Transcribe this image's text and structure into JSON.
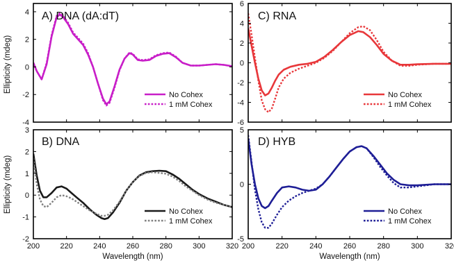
{
  "chart_data": [
    {
      "type": "line",
      "title": "A)  DNA (dA:dT)",
      "xlabel": "",
      "ylabel": "Ellipticity (mdeg)",
      "xlim": [
        200,
        320
      ],
      "ylim": [
        -4,
        4.6
      ],
      "xticks": [
        200,
        220,
        240,
        260,
        280,
        300,
        320
      ],
      "yticks": [
        -4,
        -2,
        0,
        2,
        4
      ],
      "show_xticklabels": false,
      "legend": "bottom-right",
      "series": [
        {
          "name": "No Cohex",
          "color": "#c81ec8",
          "style": "solid",
          "x": [
            200,
            202,
            205,
            208,
            211,
            214,
            216,
            218,
            221,
            224,
            227,
            230,
            233,
            236,
            239,
            242,
            244,
            246,
            249,
            252,
            255,
            258,
            260,
            263,
            266,
            270,
            274,
            278,
            282,
            286,
            290,
            295,
            300,
            305,
            310,
            315,
            320
          ],
          "y": [
            0.3,
            -0.3,
            -0.9,
            0.2,
            2.2,
            3.6,
            3.8,
            3.6,
            3.1,
            2.4,
            2.0,
            1.6,
            0.9,
            0.0,
            -1.2,
            -2.3,
            -2.7,
            -2.5,
            -1.4,
            -0.2,
            0.6,
            1.0,
            0.9,
            0.5,
            0.45,
            0.5,
            0.8,
            0.95,
            1.0,
            0.7,
            0.3,
            0.1,
            0.1,
            0.15,
            0.2,
            0.15,
            0.05
          ]
        },
        {
          "name": "1 mM Cohex",
          "color": "#c81ec8",
          "style": "dotted",
          "x": [
            200,
            202,
            205,
            208,
            211,
            214,
            216,
            218,
            221,
            224,
            227,
            230,
            233,
            236,
            239,
            242,
            244,
            246,
            249,
            252,
            255,
            258,
            260,
            263,
            266,
            270,
            274,
            278,
            282,
            286,
            290,
            295,
            300,
            305,
            310,
            315,
            320
          ],
          "y": [
            0.3,
            -0.3,
            -0.9,
            0.3,
            2.3,
            3.7,
            3.9,
            3.7,
            3.2,
            2.5,
            2.1,
            1.7,
            1.0,
            0.0,
            -1.2,
            -2.4,
            -2.8,
            -2.6,
            -1.5,
            -0.25,
            0.6,
            1.05,
            0.95,
            0.55,
            0.5,
            0.55,
            0.85,
            1.0,
            1.05,
            0.75,
            0.3,
            0.1,
            0.1,
            0.15,
            0.2,
            0.15,
            0.05
          ]
        }
      ]
    },
    {
      "type": "line",
      "title": "C)  RNA",
      "xlabel": "",
      "ylabel": "",
      "xlim": [
        200,
        320
      ],
      "ylim": [
        -6,
        6
      ],
      "xticks": [
        200,
        220,
        240,
        260,
        280,
        300,
        320
      ],
      "yticks": [
        -6,
        -4,
        -2,
        0,
        2,
        4,
        6
      ],
      "show_xticklabels": false,
      "legend": "bottom-right",
      "series": [
        {
          "name": "No Cohex",
          "color": "#e8373a",
          "style": "solid",
          "x": [
            200,
            202,
            204,
            206,
            208,
            210,
            212,
            214,
            216,
            218,
            221,
            225,
            230,
            235,
            240,
            245,
            250,
            255,
            260,
            265,
            268,
            272,
            276,
            280,
            285,
            290,
            295,
            300,
            310,
            320
          ],
          "y": [
            3.5,
            1.7,
            0.0,
            -1.6,
            -2.8,
            -3.3,
            -3.1,
            -2.5,
            -1.8,
            -1.2,
            -0.7,
            -0.4,
            -0.2,
            -0.1,
            0.1,
            0.6,
            1.3,
            2.1,
            2.8,
            3.2,
            3.1,
            2.6,
            1.8,
            0.9,
            0.2,
            -0.2,
            -0.2,
            -0.15,
            -0.1,
            -0.1
          ]
        },
        {
          "name": "1 mM Cohex",
          "color": "#e8373a",
          "style": "dotted",
          "x": [
            200,
            202,
            204,
            206,
            208,
            210,
            212,
            214,
            216,
            218,
            221,
            225,
            230,
            235,
            240,
            245,
            250,
            255,
            260,
            265,
            268,
            272,
            276,
            280,
            285,
            290,
            295,
            300,
            310,
            320
          ],
          "y": [
            5.0,
            2.8,
            0.5,
            -1.8,
            -3.8,
            -4.7,
            -5.0,
            -4.6,
            -3.6,
            -2.5,
            -1.6,
            -1.0,
            -0.6,
            -0.3,
            0.0,
            0.5,
            1.2,
            2.1,
            3.0,
            3.6,
            3.7,
            3.3,
            2.3,
            1.1,
            0.2,
            -0.3,
            -0.3,
            -0.2,
            -0.1,
            -0.1
          ]
        }
      ]
    },
    {
      "type": "line",
      "title": "B)  DNA",
      "xlabel": "Wavelength (nm)",
      "ylabel": "Ellipticity (mdeg)",
      "xlim": [
        200,
        320
      ],
      "ylim": [
        -2,
        3
      ],
      "xticks": [
        200,
        220,
        240,
        260,
        280,
        300,
        320
      ],
      "yticks": [
        -2,
        -1,
        0,
        1,
        2,
        3
      ],
      "show_xticklabels": true,
      "legend": "bottom-right",
      "series": [
        {
          "name": "No Cohex",
          "color": "#1a1a1a",
          "style": "solid",
          "x": [
            200,
            202,
            204,
            206,
            208,
            211,
            214,
            217,
            220,
            223,
            226,
            230,
            234,
            238,
            241,
            243,
            245,
            248,
            252,
            256,
            260,
            264,
            268,
            272,
            276,
            280,
            284,
            288,
            292,
            296,
            300,
            305,
            310,
            315,
            320
          ],
          "y": [
            1.9,
            0.9,
            0.2,
            -0.1,
            -0.1,
            0.1,
            0.35,
            0.4,
            0.3,
            0.1,
            -0.1,
            -0.35,
            -0.65,
            -0.9,
            -1.05,
            -1.1,
            -1.05,
            -0.8,
            -0.35,
            0.2,
            0.6,
            0.9,
            1.05,
            1.1,
            1.12,
            1.1,
            0.95,
            0.75,
            0.5,
            0.25,
            0.05,
            -0.15,
            -0.3,
            -0.45,
            -0.55
          ]
        },
        {
          "name": "1 mM Cohex",
          "color": "#808080",
          "style": "dotted",
          "x": [
            200,
            202,
            204,
            206,
            208,
            211,
            214,
            217,
            220,
            223,
            226,
            230,
            234,
            238,
            241,
            243,
            245,
            248,
            252,
            256,
            260,
            264,
            268,
            272,
            276,
            280,
            284,
            288,
            292,
            296,
            300,
            305,
            310,
            315,
            320
          ],
          "y": [
            1.7,
            0.5,
            -0.2,
            -0.5,
            -0.55,
            -0.35,
            -0.1,
            0.0,
            -0.05,
            -0.15,
            -0.3,
            -0.5,
            -0.7,
            -0.85,
            -0.95,
            -0.95,
            -0.9,
            -0.7,
            -0.3,
            0.2,
            0.6,
            0.88,
            1.02,
            1.05,
            1.02,
            0.98,
            0.85,
            0.65,
            0.4,
            0.2,
            0.0,
            -0.2,
            -0.35,
            -0.45,
            -0.55
          ]
        }
      ]
    },
    {
      "type": "line",
      "title": "D)  HYB",
      "xlabel": "Wavelength (nm)",
      "ylabel": "",
      "xlim": [
        200,
        320
      ],
      "ylim": [
        -5,
        5
      ],
      "xticks": [
        200,
        220,
        240,
        260,
        280,
        300,
        320
      ],
      "yticks": [
        -5,
        0,
        5
      ],
      "show_xticklabels": true,
      "legend": "bottom-right",
      "series": [
        {
          "name": "No Cohex",
          "color": "#1e1e96",
          "style": "solid",
          "x": [
            200,
            202,
            204,
            206,
            208,
            210,
            212,
            214,
            217,
            220,
            224,
            228,
            232,
            236,
            240,
            244,
            248,
            252,
            256,
            260,
            264,
            267,
            270,
            274,
            278,
            282,
            286,
            290,
            295,
            300,
            310,
            320
          ],
          "y": [
            4.2,
            1.8,
            0.0,
            -1.3,
            -2.0,
            -2.2,
            -2.0,
            -1.5,
            -0.8,
            -0.3,
            -0.2,
            -0.3,
            -0.5,
            -0.6,
            -0.5,
            0.0,
            0.7,
            1.5,
            2.3,
            3.0,
            3.4,
            3.5,
            3.3,
            2.6,
            1.8,
            1.0,
            0.4,
            0.0,
            -0.1,
            -0.1,
            0.0,
            0.0
          ]
        },
        {
          "name": "1 mM Cohex",
          "color": "#1e1e96",
          "style": "dotted",
          "x": [
            200,
            202,
            204,
            206,
            208,
            210,
            212,
            214,
            217,
            220,
            224,
            228,
            232,
            236,
            240,
            244,
            248,
            252,
            256,
            260,
            264,
            267,
            270,
            274,
            278,
            282,
            286,
            290,
            295,
            300,
            310,
            320
          ],
          "y": [
            4.5,
            2.0,
            -0.5,
            -2.3,
            -3.5,
            -4.0,
            -4.0,
            -3.6,
            -2.8,
            -2.1,
            -1.5,
            -1.1,
            -0.8,
            -0.6,
            -0.4,
            0.0,
            0.7,
            1.5,
            2.3,
            3.0,
            3.4,
            3.5,
            3.3,
            2.5,
            1.6,
            0.8,
            0.1,
            -0.3,
            -0.3,
            -0.2,
            0.0,
            0.0
          ]
        }
      ]
    }
  ]
}
